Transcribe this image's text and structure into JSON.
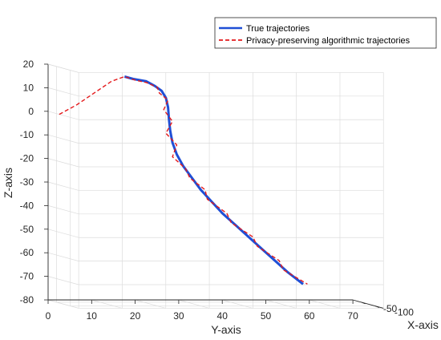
{
  "chart_data": {
    "type": "line",
    "view": "3d",
    "title": "",
    "xlabel": "X-axis",
    "ylabel": "Y-axis",
    "zlabel": "Z-axis",
    "xlim": [
      -130,
      -20
    ],
    "ylim": [
      0,
      70
    ],
    "zlim": [
      -80,
      20
    ],
    "xticks": [
      -100,
      -50
    ],
    "xtick_labels": [
      "-100",
      "-50"
    ],
    "yticks": [
      0,
      10,
      20,
      30,
      40,
      50,
      60,
      70
    ],
    "ytick_labels": [
      "0",
      "10",
      "20",
      "30",
      "40",
      "50",
      "60",
      "70"
    ],
    "zticks": [
      -80,
      -70,
      -60,
      -50,
      -40,
      -30,
      -20,
      -10,
      0,
      10,
      20
    ],
    "ztick_labels": [
      "-80",
      "-70",
      "-60",
      "-50",
      "-40",
      "-30",
      "-20",
      "-10",
      "0",
      "10",
      "20"
    ],
    "grid": true,
    "legend_position": "top-right",
    "series": [
      {
        "name": "True trajectories",
        "color": "#1f4fd6",
        "style": "solid",
        "points": [
          [
            -60,
            15,
            16
          ],
          [
            -60,
            17,
            15
          ],
          [
            -60,
            20,
            14
          ],
          [
            -60,
            22,
            12
          ],
          [
            -60,
            23.5,
            10
          ],
          [
            -60,
            24.5,
            7
          ],
          [
            -60,
            25,
            3
          ],
          [
            -60,
            25.2,
            -2
          ],
          [
            -60,
            25.5,
            -7
          ],
          [
            -60,
            26,
            -12
          ],
          [
            -60,
            27,
            -17
          ],
          [
            -60,
            28.5,
            -22
          ],
          [
            -60,
            30.5,
            -27
          ],
          [
            -60,
            32.5,
            -32
          ],
          [
            -60,
            35,
            -37
          ],
          [
            -60,
            37.5,
            -42
          ],
          [
            -60,
            40.5,
            -47
          ],
          [
            -60,
            43.5,
            -52
          ],
          [
            -60,
            46.5,
            -57
          ],
          [
            -60,
            49.5,
            -62
          ],
          [
            -60,
            52.5,
            -67
          ],
          [
            -60,
            56,
            -72
          ]
        ]
      },
      {
        "name": "Privacy-preserving algorithmic trajectories",
        "color": "#e41a1c",
        "style": "dashed",
        "points": [
          [
            -60,
            0,
            0
          ],
          [
            -60,
            4,
            4
          ],
          [
            -60,
            8,
            9
          ],
          [
            -60,
            12,
            14
          ],
          [
            -60,
            15,
            16
          ],
          [
            -60,
            17.5,
            14.5
          ],
          [
            -60,
            20,
            13.5
          ],
          [
            -60,
            22.5,
            11.5
          ],
          [
            -60,
            23,
            9
          ],
          [
            -60,
            25,
            6
          ],
          [
            -60,
            24,
            2
          ],
          [
            -60,
            26,
            -3
          ],
          [
            -60,
            24.5,
            -8
          ],
          [
            -60,
            27,
            -13
          ],
          [
            -60,
            26,
            -18
          ],
          [
            -60,
            29,
            -23
          ],
          [
            -60,
            30,
            -27
          ],
          [
            -60,
            33.5,
            -32
          ],
          [
            -60,
            34,
            -36
          ],
          [
            -60,
            38.5,
            -42
          ],
          [
            -60,
            39.5,
            -46
          ],
          [
            -60,
            44.5,
            -52
          ],
          [
            -60,
            45.5,
            -56
          ],
          [
            -60,
            50.5,
            -62
          ],
          [
            -60,
            51.5,
            -66
          ],
          [
            -60,
            57,
            -72
          ]
        ]
      }
    ]
  }
}
